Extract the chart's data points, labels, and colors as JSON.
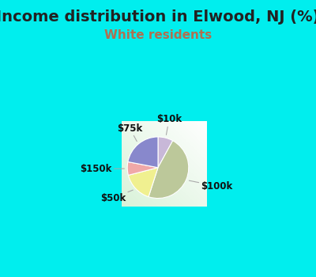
{
  "title": "Income distribution in Elwood, NJ (%)",
  "subtitle": "White residents",
  "title_fontsize": 14,
  "subtitle_fontsize": 11,
  "title_color": "#222222",
  "subtitle_color": "#b07050",
  "background_outer": "#00EEEE",
  "background_inner_start": "#f0f8f0",
  "background_inner_end": "#d0edd0",
  "slices": [
    {
      "label": "$10k",
      "value": 8,
      "color": "#c8b8d8"
    },
    {
      "label": "$100k",
      "value": 47,
      "color": "#bcc89a"
    },
    {
      "label": "$50k",
      "value": 16,
      "color": "#f0f090"
    },
    {
      "label": "$150k",
      "value": 7,
      "color": "#f0a8a8"
    },
    {
      "label": "$75k",
      "value": 22,
      "color": "#8888cc"
    }
  ],
  "startangle": 90,
  "counterclock": false,
  "label_fontsize": 8.5,
  "label_color": "#111111",
  "line_color": "#aaaaaa"
}
